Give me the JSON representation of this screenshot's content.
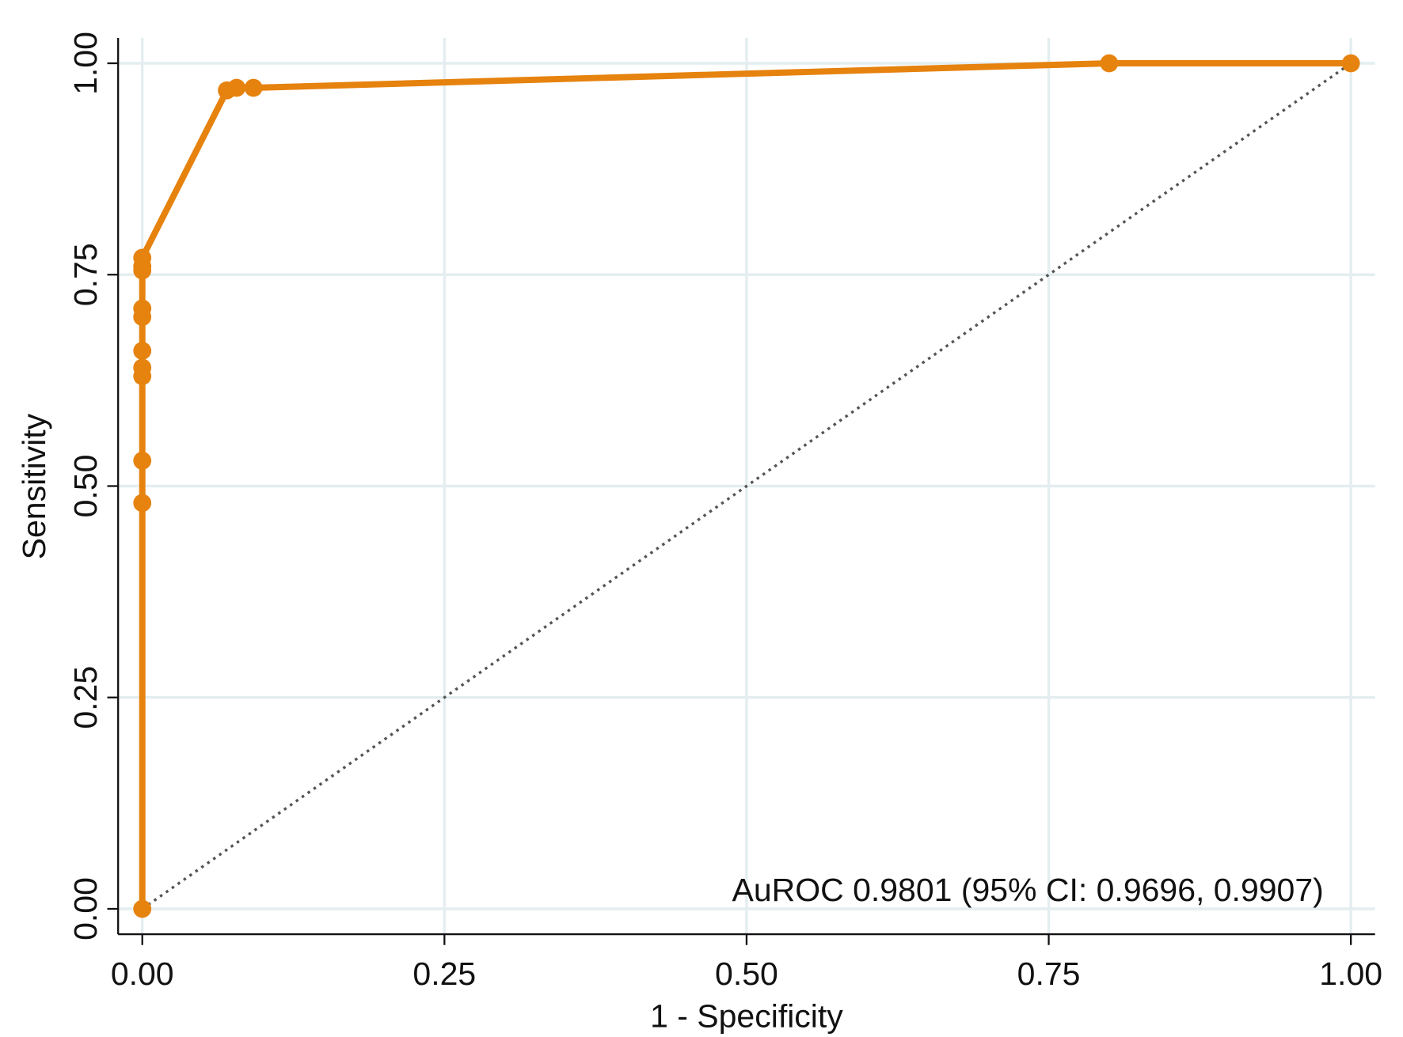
{
  "chart_data": {
    "type": "line",
    "x_label": "1 - Specificity",
    "y_label": "Sensitivity",
    "annotation": "AuROC 0.9801 (95% CI: 0.9696, 0.9907)",
    "x": [
      0,
      0,
      0,
      0,
      0,
      0,
      0,
      0,
      0,
      0,
      0,
      0.07,
      0.078,
      0.092,
      0.8,
      1
    ],
    "series": [
      {
        "color": "#e6820e",
        "values": [
          0,
          0.48,
          0.53,
          0.63,
          0.64,
          0.66,
          0.7,
          0.71,
          0.755,
          0.76,
          0.77,
          0.968,
          0.971,
          0.971,
          1,
          1
        ]
      }
    ],
    "reference": {
      "x": [
        0,
        1
      ],
      "values": [
        0,
        1
      ],
      "color": "#555555",
      "style": "dotted"
    },
    "xlim": [
      -0.02,
      1.02
    ],
    "ylim": [
      -0.03,
      1.03
    ],
    "xticks": [
      {
        "value": 0,
        "label": "0.00"
      },
      {
        "value": 0.25,
        "label": "0.25"
      },
      {
        "value": 0.5,
        "label": "0.50"
      },
      {
        "value": 0.75,
        "label": "0.75"
      },
      {
        "value": 1,
        "label": "1.00"
      }
    ],
    "yticks": [
      {
        "value": 0,
        "label": "0.00"
      },
      {
        "value": 0.25,
        "label": "0.25"
      },
      {
        "value": 0.5,
        "label": "0.50"
      },
      {
        "value": 0.75,
        "label": "0.75"
      },
      {
        "value": 1,
        "label": "1.00"
      }
    ],
    "grid": true
  }
}
